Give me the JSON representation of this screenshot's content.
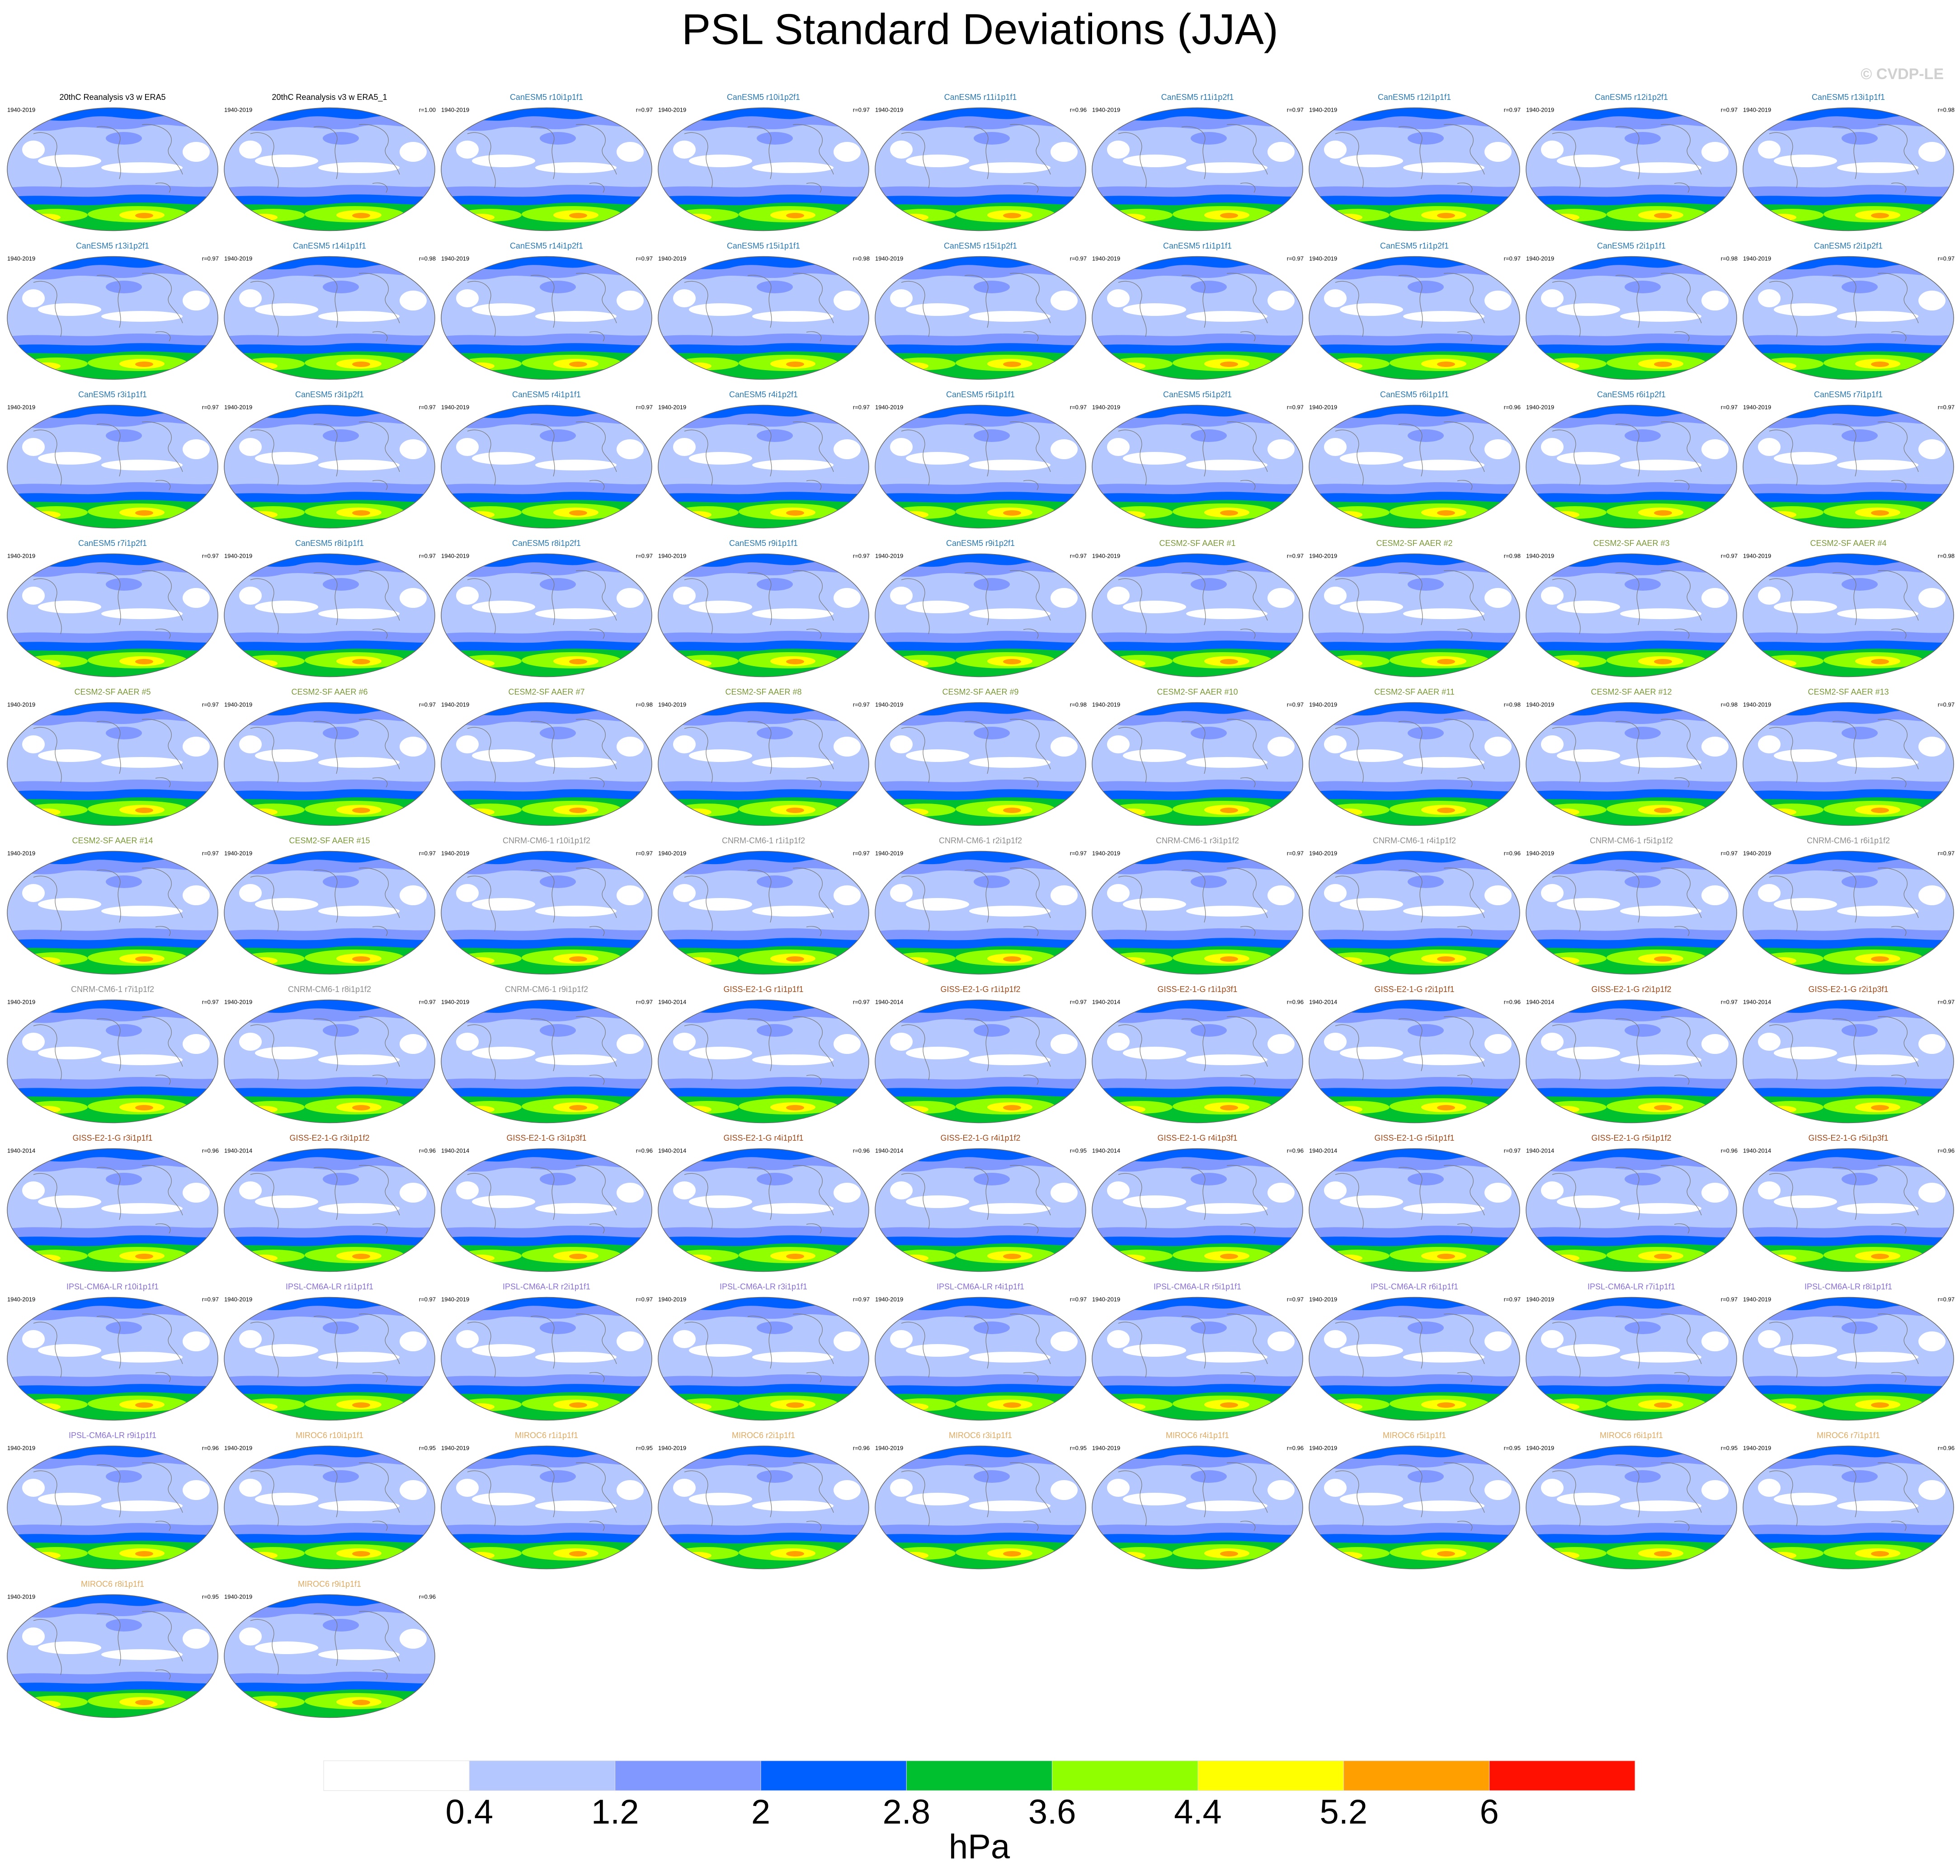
{
  "title": "PSL Standard Deviations (JJA)",
  "watermark": "© CVDP-LE",
  "panels": [
    {
      "title": "20thC Reanalysis v3 w ERA5",
      "period": "1940-2019",
      "color": "#000000"
    },
    {
      "title": "20thC Reanalysis v3 w ERA5_1",
      "period": "1940-2019",
      "r": "r=1.00",
      "color": "#000000"
    },
    {
      "title": "CanESM5 r10i1p1f1",
      "period": "1940-2019",
      "r": "r=0.97",
      "color": "#2a78b0"
    },
    {
      "title": "CanESM5 r10i1p2f1",
      "period": "1940-2019",
      "r": "r=0.97",
      "color": "#2a78b0"
    },
    {
      "title": "CanESM5 r11i1p1f1",
      "period": "1940-2019",
      "r": "r=0.96",
      "color": "#2a78b0"
    },
    {
      "title": "CanESM5 r11i1p2f1",
      "period": "1940-2019",
      "r": "r=0.97",
      "color": "#2a78b0"
    },
    {
      "title": "CanESM5 r12i1p1f1",
      "period": "1940-2019",
      "r": "r=0.97",
      "color": "#2a78b0"
    },
    {
      "title": "CanESM5 r12i1p2f1",
      "period": "1940-2019",
      "r": "r=0.97",
      "color": "#2a78b0"
    },
    {
      "title": "CanESM5 r13i1p1f1",
      "period": "1940-2019",
      "r": "r=0.98",
      "color": "#2a78b0"
    },
    {
      "title": "CanESM5 r13i1p2f1",
      "period": "1940-2019",
      "r": "r=0.97",
      "color": "#2a78b0"
    },
    {
      "title": "CanESM5 r14i1p1f1",
      "period": "1940-2019",
      "r": "r=0.98",
      "color": "#2a78b0"
    },
    {
      "title": "CanESM5 r14i1p2f1",
      "period": "1940-2019",
      "r": "r=0.97",
      "color": "#2a78b0"
    },
    {
      "title": "CanESM5 r15i1p1f1",
      "period": "1940-2019",
      "r": "r=0.98",
      "color": "#2a78b0"
    },
    {
      "title": "CanESM5 r15i1p2f1",
      "period": "1940-2019",
      "r": "r=0.97",
      "color": "#2a78b0"
    },
    {
      "title": "CanESM5 r1i1p1f1",
      "period": "1940-2019",
      "r": "r=0.97",
      "color": "#2a78b0"
    },
    {
      "title": "CanESM5 r1i1p2f1",
      "period": "1940-2019",
      "r": "r=0.97",
      "color": "#2a78b0"
    },
    {
      "title": "CanESM5 r2i1p1f1",
      "period": "1940-2019",
      "r": "r=0.98",
      "color": "#2a78b0"
    },
    {
      "title": "CanESM5 r2i1p2f1",
      "period": "1940-2019",
      "r": "r=0.97",
      "color": "#2a78b0"
    },
    {
      "title": "CanESM5 r3i1p1f1",
      "period": "1940-2019",
      "r": "r=0.97",
      "color": "#2a78b0"
    },
    {
      "title": "CanESM5 r3i1p2f1",
      "period": "1940-2019",
      "r": "r=0.97",
      "color": "#2a78b0"
    },
    {
      "title": "CanESM5 r4i1p1f1",
      "period": "1940-2019",
      "r": "r=0.97",
      "color": "#2a78b0"
    },
    {
      "title": "CanESM5 r4i1p2f1",
      "period": "1940-2019",
      "r": "r=0.97",
      "color": "#2a78b0"
    },
    {
      "title": "CanESM5 r5i1p1f1",
      "period": "1940-2019",
      "r": "r=0.97",
      "color": "#2a78b0"
    },
    {
      "title": "CanESM5 r5i1p2f1",
      "period": "1940-2019",
      "r": "r=0.97",
      "color": "#2a78b0"
    },
    {
      "title": "CanESM5 r6i1p1f1",
      "period": "1940-2019",
      "r": "r=0.96",
      "color": "#2a78b0"
    },
    {
      "title": "CanESM5 r6i1p2f1",
      "period": "1940-2019",
      "r": "r=0.97",
      "color": "#2a78b0"
    },
    {
      "title": "CanESM5 r7i1p1f1",
      "period": "1940-2019",
      "r": "r=0.97",
      "color": "#2a78b0"
    },
    {
      "title": "CanESM5 r7i1p2f1",
      "period": "1940-2019",
      "r": "r=0.97",
      "color": "#2a78b0"
    },
    {
      "title": "CanESM5 r8i1p1f1",
      "period": "1940-2019",
      "r": "r=0.97",
      "color": "#2a78b0"
    },
    {
      "title": "CanESM5 r8i1p2f1",
      "period": "1940-2019",
      "r": "r=0.97",
      "color": "#2a78b0"
    },
    {
      "title": "CanESM5 r9i1p1f1",
      "period": "1940-2019",
      "r": "r=0.97",
      "color": "#2a78b0"
    },
    {
      "title": "CanESM5 r9i1p2f1",
      "period": "1940-2019",
      "r": "r=0.97",
      "color": "#2a78b0"
    },
    {
      "title": "CESM2-SF AAER #1",
      "period": "1940-2019",
      "r": "r=0.97",
      "color": "#7a9a3a"
    },
    {
      "title": "CESM2-SF AAER #2",
      "period": "1940-2019",
      "r": "r=0.98",
      "color": "#7a9a3a"
    },
    {
      "title": "CESM2-SF AAER #3",
      "period": "1940-2019",
      "r": "r=0.97",
      "color": "#7a9a3a"
    },
    {
      "title": "CESM2-SF AAER #4",
      "period": "1940-2019",
      "r": "r=0.98",
      "color": "#7a9a3a"
    },
    {
      "title": "CESM2-SF AAER #5",
      "period": "1940-2019",
      "r": "r=0.97",
      "color": "#7a9a3a"
    },
    {
      "title": "CESM2-SF AAER #6",
      "period": "1940-2019",
      "r": "r=0.97",
      "color": "#7a9a3a"
    },
    {
      "title": "CESM2-SF AAER #7",
      "period": "1940-2019",
      "r": "r=0.98",
      "color": "#7a9a3a"
    },
    {
      "title": "CESM2-SF AAER #8",
      "period": "1940-2019",
      "r": "r=0.97",
      "color": "#7a9a3a"
    },
    {
      "title": "CESM2-SF AAER #9",
      "period": "1940-2019",
      "r": "r=0.98",
      "color": "#7a9a3a"
    },
    {
      "title": "CESM2-SF AAER #10",
      "period": "1940-2019",
      "r": "r=0.97",
      "color": "#7a9a3a"
    },
    {
      "title": "CESM2-SF AAER #11",
      "period": "1940-2019",
      "r": "r=0.98",
      "color": "#7a9a3a"
    },
    {
      "title": "CESM2-SF AAER #12",
      "period": "1940-2019",
      "r": "r=0.98",
      "color": "#7a9a3a"
    },
    {
      "title": "CESM2-SF AAER #13",
      "period": "1940-2019",
      "r": "r=0.97",
      "color": "#7a9a3a"
    },
    {
      "title": "CESM2-SF AAER #14",
      "period": "1940-2019",
      "r": "r=0.97",
      "color": "#7a9a3a"
    },
    {
      "title": "CESM2-SF AAER #15",
      "period": "1940-2019",
      "r": "r=0.97",
      "color": "#7a9a3a"
    },
    {
      "title": "CNRM-CM6-1 r10i1p1f2",
      "period": "1940-2019",
      "r": "r=0.97",
      "color": "#8c8c8c"
    },
    {
      "title": "CNRM-CM6-1 r1i1p1f2",
      "period": "1940-2019",
      "r": "r=0.97",
      "color": "#8c8c8c"
    },
    {
      "title": "CNRM-CM6-1 r2i1p1f2",
      "period": "1940-2019",
      "r": "r=0.97",
      "color": "#8c8c8c"
    },
    {
      "title": "CNRM-CM6-1 r3i1p1f2",
      "period": "1940-2019",
      "r": "r=0.97",
      "color": "#8c8c8c"
    },
    {
      "title": "CNRM-CM6-1 r4i1p1f2",
      "period": "1940-2019",
      "r": "r=0.96",
      "color": "#8c8c8c"
    },
    {
      "title": "CNRM-CM6-1 r5i1p1f2",
      "period": "1940-2019",
      "r": "r=0.97",
      "color": "#8c8c8c"
    },
    {
      "title": "CNRM-CM6-1 r6i1p1f2",
      "period": "1940-2019",
      "r": "r=0.97",
      "color": "#8c8c8c"
    },
    {
      "title": "CNRM-CM6-1 r7i1p1f2",
      "period": "1940-2019",
      "r": "r=0.97",
      "color": "#8c8c8c"
    },
    {
      "title": "CNRM-CM6-1 r8i1p1f2",
      "period": "1940-2019",
      "r": "r=0.97",
      "color": "#8c8c8c"
    },
    {
      "title": "CNRM-CM6-1 r9i1p1f2",
      "period": "1940-2019",
      "r": "r=0.97",
      "color": "#8c8c8c"
    },
    {
      "title": "GISS-E2-1-G r1i1p1f1",
      "period": "1940-2014",
      "r": "r=0.97",
      "color": "#a04a1a"
    },
    {
      "title": "GISS-E2-1-G r1i1p1f2",
      "period": "1940-2014",
      "r": "r=0.97",
      "color": "#a04a1a"
    },
    {
      "title": "GISS-E2-1-G r1i1p3f1",
      "period": "1940-2014",
      "r": "r=0.96",
      "color": "#a04a1a"
    },
    {
      "title": "GISS-E2-1-G r2i1p1f1",
      "period": "1940-2014",
      "r": "r=0.96",
      "color": "#a04a1a"
    },
    {
      "title": "GISS-E2-1-G r2i1p1f2",
      "period": "1940-2014",
      "r": "r=0.97",
      "color": "#a04a1a"
    },
    {
      "title": "GISS-E2-1-G r2i1p3f1",
      "period": "1940-2014",
      "r": "r=0.97",
      "color": "#a04a1a"
    },
    {
      "title": "GISS-E2-1-G r3i1p1f1",
      "period": "1940-2014",
      "r": "r=0.96",
      "color": "#a04a1a"
    },
    {
      "title": "GISS-E2-1-G r3i1p1f2",
      "period": "1940-2014",
      "r": "r=0.96",
      "color": "#a04a1a"
    },
    {
      "title": "GISS-E2-1-G r3i1p3f1",
      "period": "1940-2014",
      "r": "r=0.96",
      "color": "#a04a1a"
    },
    {
      "title": "GISS-E2-1-G r4i1p1f1",
      "period": "1940-2014",
      "r": "r=0.96",
      "color": "#a04a1a"
    },
    {
      "title": "GISS-E2-1-G r4i1p1f2",
      "period": "1940-2014",
      "r": "r=0.95",
      "color": "#a04a1a"
    },
    {
      "title": "GISS-E2-1-G r4i1p3f1",
      "period": "1940-2014",
      "r": "r=0.96",
      "color": "#a04a1a"
    },
    {
      "title": "GISS-E2-1-G r5i1p1f1",
      "period": "1940-2014",
      "r": "r=0.97",
      "color": "#a04a1a"
    },
    {
      "title": "GISS-E2-1-G r5i1p1f2",
      "period": "1940-2014",
      "r": "r=0.96",
      "color": "#a04a1a"
    },
    {
      "title": "GISS-E2-1-G r5i1p3f1",
      "period": "1940-2014",
      "r": "r=0.96",
      "color": "#a04a1a"
    },
    {
      "title": "IPSL-CM6A-LR r10i1p1f1",
      "period": "1940-2019",
      "r": "r=0.97",
      "color": "#8a70d0"
    },
    {
      "title": "IPSL-CM6A-LR r1i1p1f1",
      "period": "1940-2019",
      "r": "r=0.97",
      "color": "#8a70d0"
    },
    {
      "title": "IPSL-CM6A-LR r2i1p1f1",
      "period": "1940-2019",
      "r": "r=0.97",
      "color": "#8a70d0"
    },
    {
      "title": "IPSL-CM6A-LR r3i1p1f1",
      "period": "1940-2019",
      "r": "r=0.97",
      "color": "#8a70d0"
    },
    {
      "title": "IPSL-CM6A-LR r4i1p1f1",
      "period": "1940-2019",
      "r": "r=0.97",
      "color": "#8a70d0"
    },
    {
      "title": "IPSL-CM6A-LR r5i1p1f1",
      "period": "1940-2019",
      "r": "r=0.97",
      "color": "#8a70d0"
    },
    {
      "title": "IPSL-CM6A-LR r6i1p1f1",
      "period": "1940-2019",
      "r": "r=0.97",
      "color": "#8a70d0"
    },
    {
      "title": "IPSL-CM6A-LR r7i1p1f1",
      "period": "1940-2019",
      "r": "r=0.97",
      "color": "#8a70d0"
    },
    {
      "title": "IPSL-CM6A-LR r8i1p1f1",
      "period": "1940-2019",
      "r": "r=0.97",
      "color": "#8a70d0"
    },
    {
      "title": "IPSL-CM6A-LR r9i1p1f1",
      "period": "1940-2019",
      "r": "r=0.96",
      "color": "#8a70d0"
    },
    {
      "title": "MIROC6 r10i1p1f1",
      "period": "1940-2019",
      "r": "r=0.95",
      "color": "#e0aa60"
    },
    {
      "title": "MIROC6 r1i1p1f1",
      "period": "1940-2019",
      "r": "r=0.95",
      "color": "#e0aa60"
    },
    {
      "title": "MIROC6 r2i1p1f1",
      "period": "1940-2019",
      "r": "r=0.96",
      "color": "#e0aa60"
    },
    {
      "title": "MIROC6 r3i1p1f1",
      "period": "1940-2019",
      "r": "r=0.95",
      "color": "#e0aa60"
    },
    {
      "title": "MIROC6 r4i1p1f1",
      "period": "1940-2019",
      "r": "r=0.96",
      "color": "#e0aa60"
    },
    {
      "title": "MIROC6 r5i1p1f1",
      "period": "1940-2019",
      "r": "r=0.95",
      "color": "#e0aa60"
    },
    {
      "title": "MIROC6 r6i1p1f1",
      "period": "1940-2019",
      "r": "r=0.95",
      "color": "#e0aa60"
    },
    {
      "title": "MIROC6 r7i1p1f1",
      "period": "1940-2019",
      "r": "r=0.96",
      "color": "#e0aa60"
    },
    {
      "title": "MIROC6 r8i1p1f1",
      "period": "1940-2019",
      "r": "r=0.95",
      "color": "#e0aa60"
    },
    {
      "title": "MIROC6 r9i1p1f1",
      "period": "1940-2019",
      "r": "r=0.96",
      "color": "#e0aa60"
    }
  ],
  "colorbar": {
    "colors": [
      "#ffffff",
      "#b4c8ff",
      "#8098ff",
      "#0060ff",
      "#00c030",
      "#90ff00",
      "#ffff00",
      "#ffa000",
      "#ff1000"
    ],
    "levels": [
      0.4,
      1.2,
      2,
      2.8,
      3.6,
      4.4,
      5.2,
      6
    ],
    "label": "hPa"
  }
}
